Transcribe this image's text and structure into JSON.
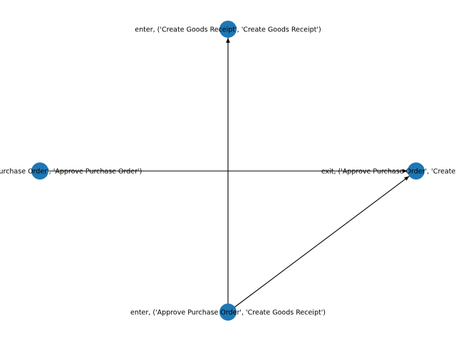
{
  "graph": {
    "node_color": "#1f77b4",
    "edge_color": "#000000",
    "directed": true,
    "nodes": [
      {
        "id": "n-top",
        "label": "enter, ('Create Goods Receipt', 'Create Goods Receipt')"
      },
      {
        "id": "n-left",
        "label": "enter, ('Approve Purchase Order', 'Approve Purchase Order')"
      },
      {
        "id": "n-right",
        "label": "exit, ('Approve Purchase Order', 'Create Goods Receipt')"
      },
      {
        "id": "n-bottom",
        "label": "enter, ('Approve Purchase Order', 'Create Goods Receipt')"
      }
    ],
    "edges": [
      {
        "from": "n-bottom",
        "to": "n-top"
      },
      {
        "from": "n-left",
        "to": "n-right"
      },
      {
        "from": "n-bottom",
        "to": "n-right"
      }
    ]
  }
}
